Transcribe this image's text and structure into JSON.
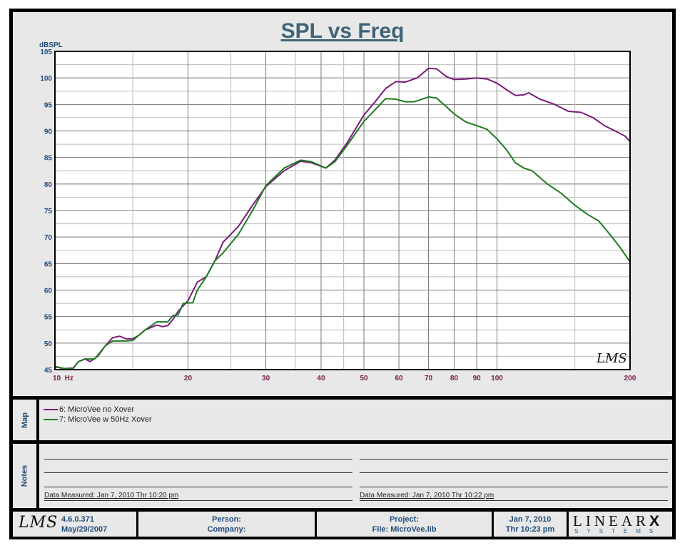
{
  "chart_data": {
    "type": "line",
    "title": "SPL vs Freq",
    "xlabel": "Hz",
    "ylabel": "dBSPL",
    "xscale": "log",
    "xlim": [
      10,
      200
    ],
    "ylim": [
      45,
      105
    ],
    "grid": true,
    "x_tick_labels": [
      {
        "value": 10,
        "label": "10  Hz"
      },
      {
        "value": 20,
        "label": "20"
      },
      {
        "value": 30,
        "label": "30"
      },
      {
        "value": 40,
        "label": "40"
      },
      {
        "value": 50,
        "label": "50"
      },
      {
        "value": 60,
        "label": "60"
      },
      {
        "value": 70,
        "label": "70"
      },
      {
        "value": 80,
        "label": "80"
      },
      {
        "value": 90,
        "label": "90"
      },
      {
        "value": 100,
        "label": "100"
      },
      {
        "value": 200,
        "label": "200"
      }
    ],
    "y_ticks": [
      45,
      50,
      55,
      60,
      65,
      70,
      75,
      80,
      85,
      90,
      95,
      100,
      105
    ],
    "series": [
      {
        "name": "6: MicroVee no Xover",
        "color": "#7a1a7a",
        "x": [
          10,
          10.5,
          11,
          11.3,
          11.7,
          12,
          12.5,
          13,
          13.5,
          14,
          14.5,
          15,
          15.5,
          16,
          17,
          17.5,
          18,
          18.5,
          19,
          20,
          21,
          22,
          23,
          24,
          26,
          28,
          30,
          33,
          36,
          38,
          41,
          43,
          46,
          50,
          53,
          56,
          59,
          62,
          66,
          70,
          73,
          77,
          80,
          85,
          90,
          95,
          100,
          105,
          110,
          115,
          118,
          125,
          135,
          145,
          155,
          165,
          175,
          185,
          195,
          200
        ],
        "y": [
          45.5,
          45.2,
          45.3,
          46.5,
          47,
          46.5,
          47.5,
          49.5,
          51,
          51.3,
          50.8,
          50.8,
          51.5,
          52.5,
          53.4,
          53.1,
          53.3,
          54.5,
          56,
          58,
          61.5,
          62.5,
          65.5,
          69,
          72,
          76,
          79.5,
          82.5,
          84.3,
          84,
          83,
          84.5,
          88,
          93,
          95.5,
          98,
          99.3,
          99.2,
          100,
          101.8,
          101.7,
          100.2,
          99.7,
          99.8,
          100,
          99.8,
          99,
          97.8,
          96.7,
          96.8,
          97.2,
          96,
          95,
          93.7,
          93.5,
          92.5,
          91,
          90,
          89,
          88
        ]
      },
      {
        "name": "7: MicroVee w  50Hz Xover",
        "color": "#1f7a1f",
        "x": [
          10,
          10.5,
          11,
          11.3,
          11.7,
          12.3,
          13,
          13.5,
          14.5,
          15,
          16,
          17,
          18,
          18.5,
          19,
          19.5,
          20.5,
          21,
          22,
          23,
          24,
          26,
          28,
          30,
          33,
          36,
          38,
          41,
          43,
          46,
          50,
          53,
          56,
          59,
          62,
          65,
          70,
          73,
          77,
          80,
          85,
          90,
          95,
          100,
          105,
          110,
          115,
          120,
          130,
          140,
          150,
          160,
          170,
          180,
          190,
          200
        ],
        "y": [
          45.6,
          45.2,
          45.2,
          46.5,
          47,
          47,
          49.5,
          50.4,
          50.4,
          50.5,
          52.5,
          54,
          54,
          55.2,
          55.3,
          57.5,
          57.6,
          60,
          62.5,
          65.5,
          67,
          70.5,
          75,
          79.7,
          83,
          84.5,
          84.2,
          83,
          84.2,
          87.5,
          91.8,
          94,
          96.1,
          96,
          95.5,
          95.5,
          96.4,
          96.2,
          94.5,
          93.2,
          91.7,
          91,
          90.3,
          88.5,
          86.5,
          84,
          83,
          82.5,
          80,
          78.2,
          76,
          74.3,
          73,
          70.5,
          68,
          65.3
        ]
      }
    ],
    "watermark": "LMS"
  },
  "map": {
    "label": "Map",
    "entries": [
      {
        "text": "6: MicroVee no Xover",
        "color": "#7a1a7a"
      },
      {
        "text": "7: MicroVee w  50Hz Xover",
        "color": "#1f7a1f"
      }
    ]
  },
  "notes": {
    "label": "Notes",
    "left_measured": "Data Measured: Jan  7, 2010  Thr 10:20 pm",
    "right_measured": "Data Measured: Jan  7, 2010  Thr 10:22 pm"
  },
  "footer": {
    "logo": "LMS",
    "version": "4.6.0.371",
    "version_date": "May/29/2007",
    "person": "Person:",
    "company": "Company:",
    "project": "Project:",
    "file": "File: MicroVee.lib",
    "date": "Jan  7, 2010",
    "time": "Thr 10:23 pm",
    "brand_top": "LINEAR",
    "brand_x": "X",
    "brand_bottom": "SYSTEMS"
  },
  "colors": {
    "title": "#3f6478",
    "axis_y": "#1f4a7a",
    "axis_x": "#7a1a4a",
    "panel": "#e8e8e8"
  }
}
